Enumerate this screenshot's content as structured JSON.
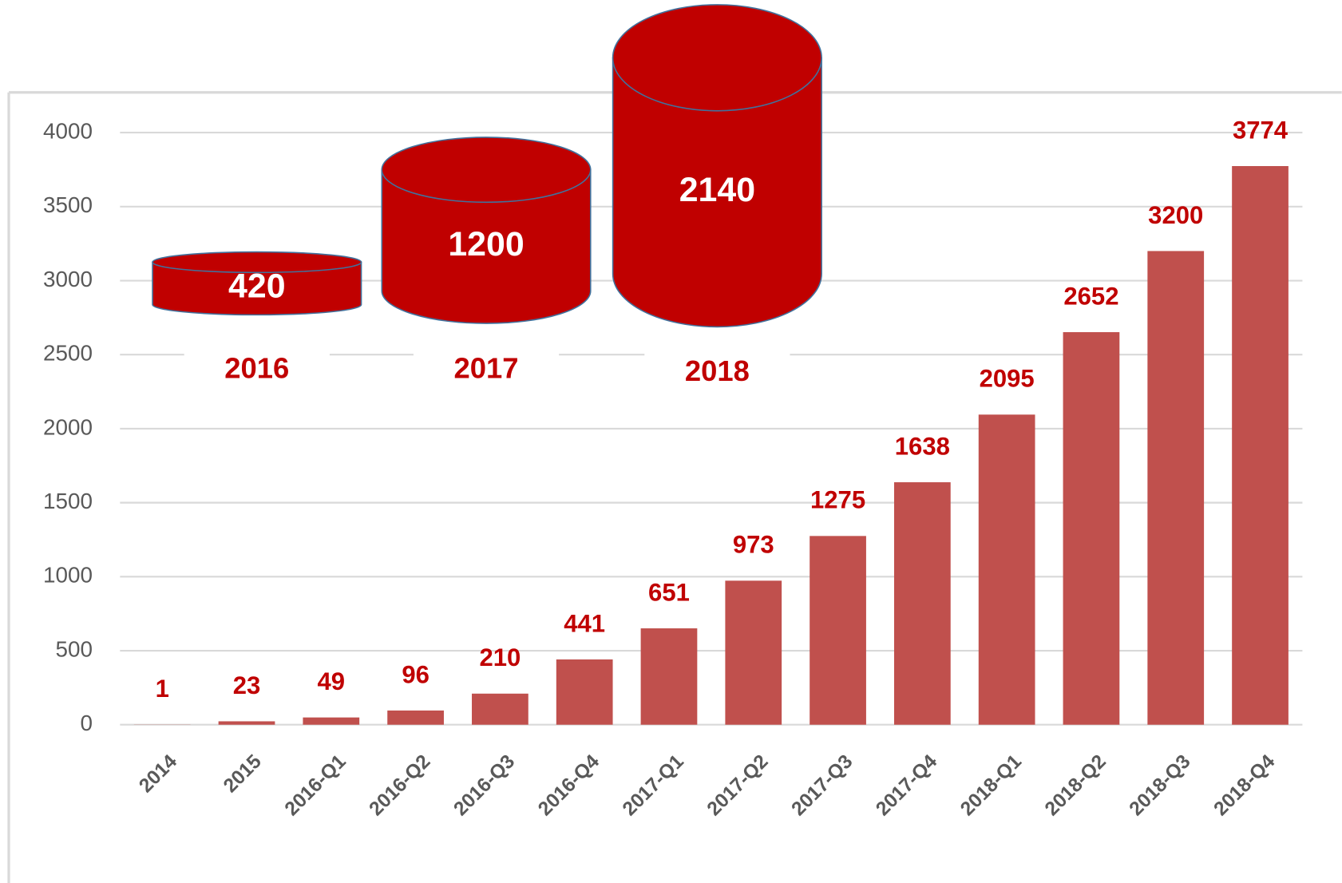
{
  "chart_data": {
    "type": "bar",
    "categories": [
      "2014",
      "2015",
      "2016-Q1",
      "2016-Q2",
      "2016-Q3",
      "2016-Q4",
      "2017-Q1",
      "2017-Q2",
      "2017-Q3",
      "2017-Q4",
      "2018-Q1",
      "2018-Q2",
      "2018-Q3",
      "2018-Q4"
    ],
    "values": [
      1,
      23,
      49,
      96,
      210,
      441,
      651,
      973,
      1275,
      1638,
      2095,
      2652,
      3200,
      3774
    ],
    "color": "#c0504d",
    "ylim": [
      0,
      4000
    ],
    "yticks": [
      0,
      500,
      1000,
      1500,
      2000,
      2500,
      3000,
      3500,
      4000
    ],
    "grid": true,
    "cylinders": [
      {
        "label": "2016",
        "value": 420
      },
      {
        "label": "2017",
        "value": 1200
      },
      {
        "label": "2018",
        "value": 2140
      }
    ],
    "cylinder_color": "#c00000"
  }
}
